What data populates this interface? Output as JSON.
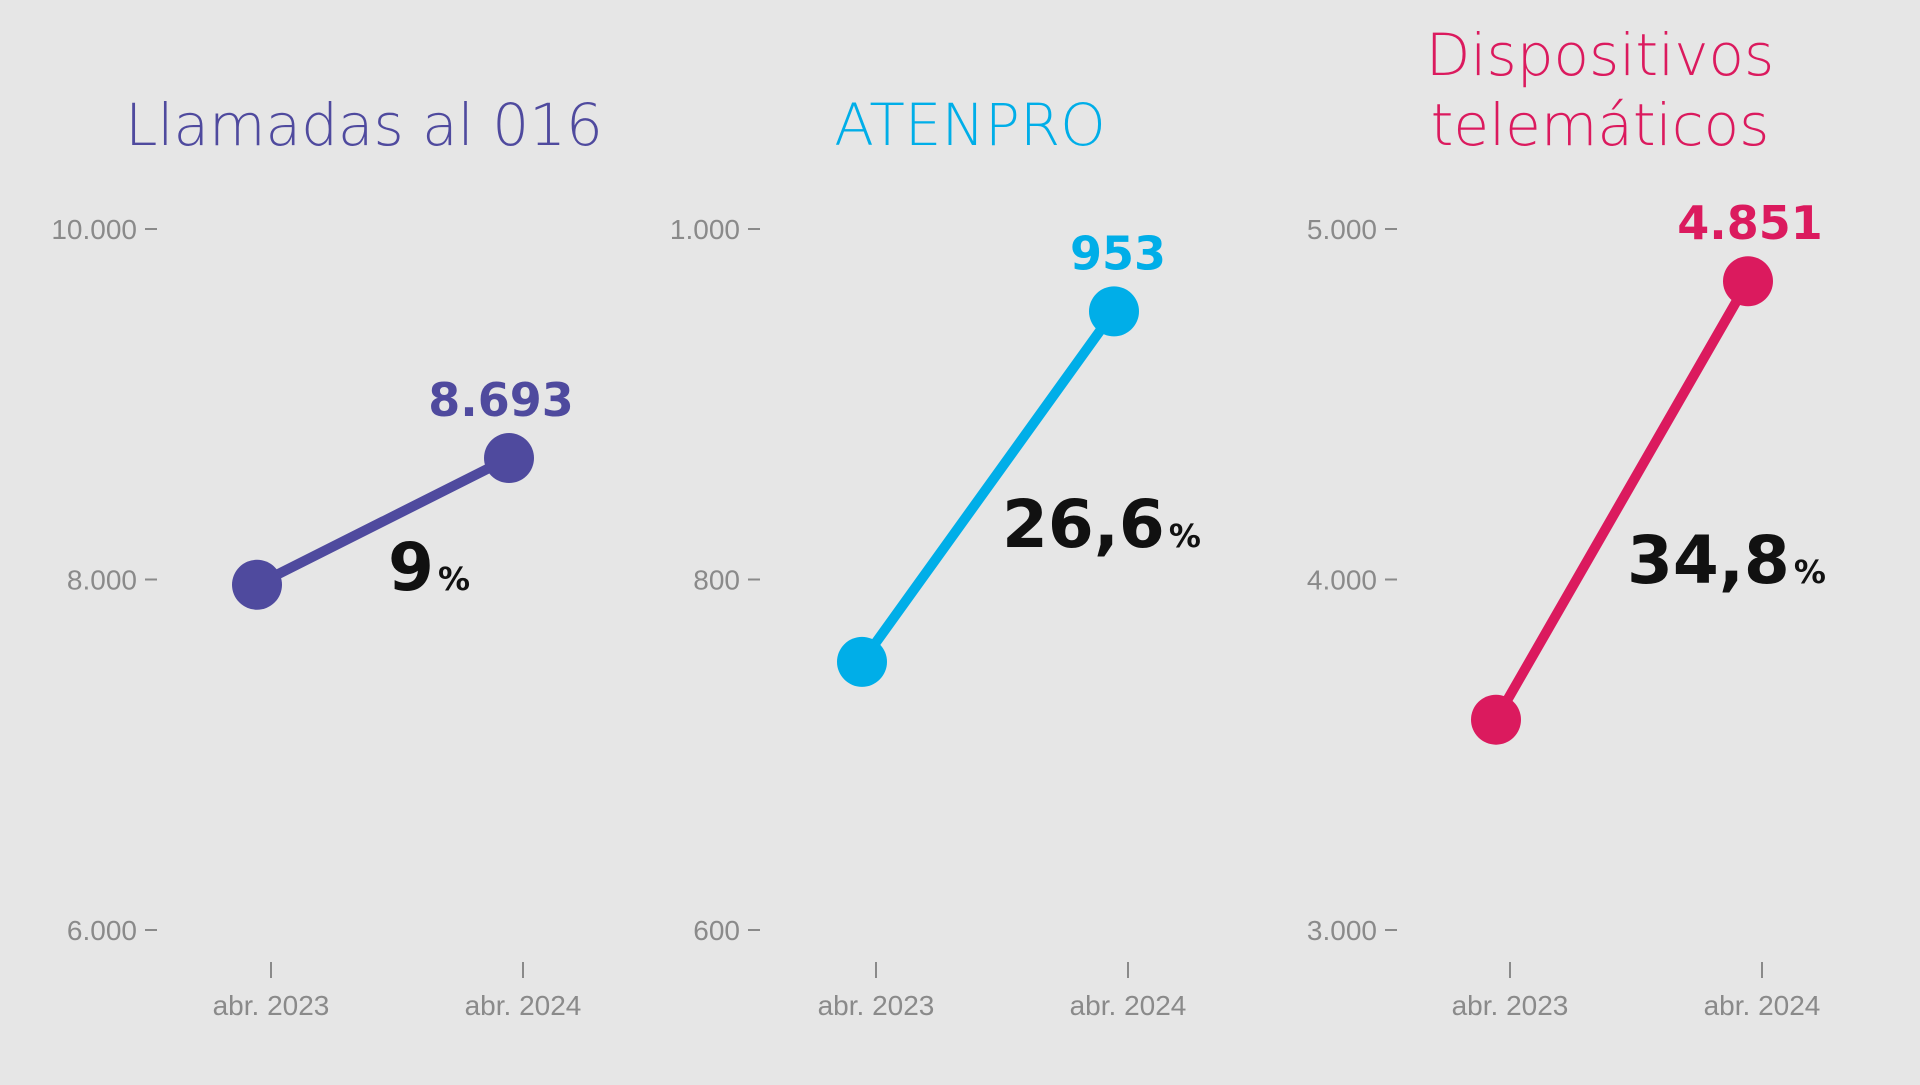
{
  "chart_data": [
    {
      "type": "line",
      "title": [
        "Llamadas al 016"
      ],
      "color": "#4f4a9e",
      "categories": [
        "abr. 2023",
        "abr. 2024"
      ],
      "values": [
        7970,
        8693
      ],
      "value_label": "8.693",
      "change": "9",
      "change_unit": "%",
      "ylim": [
        6000,
        10000
      ],
      "yticks": [
        {
          "value": 10000,
          "label": "10.000"
        },
        {
          "value": 8000,
          "label": "8.000"
        },
        {
          "value": 6000,
          "label": "6.000"
        }
      ]
    },
    {
      "type": "line",
      "title": [
        "ATENPRO"
      ],
      "color": "#00aee8",
      "categories": [
        "abr. 2023",
        "abr. 2024"
      ],
      "values": [
        753,
        953
      ],
      "value_label": "953",
      "change": "26,6",
      "change_unit": "%",
      "ylim": [
        600,
        1000
      ],
      "yticks": [
        {
          "value": 1000,
          "label": "1.000"
        },
        {
          "value": 800,
          "label": "800"
        },
        {
          "value": 600,
          "label": "600"
        }
      ]
    },
    {
      "type": "line",
      "title": [
        "Dispositivos",
        "telemáticos"
      ],
      "color": "#db1a5e",
      "categories": [
        "abr. 2023",
        "abr. 2024"
      ],
      "values": [
        3600,
        4851
      ],
      "value_label": "4.851",
      "change": "34,8",
      "change_unit": "%",
      "ylim": [
        3000,
        5000
      ],
      "yticks": [
        {
          "value": 5000,
          "label": "5.000"
        },
        {
          "value": 4000,
          "label": "4.000"
        },
        {
          "value": 3000,
          "label": "3.000"
        }
      ]
    }
  ]
}
